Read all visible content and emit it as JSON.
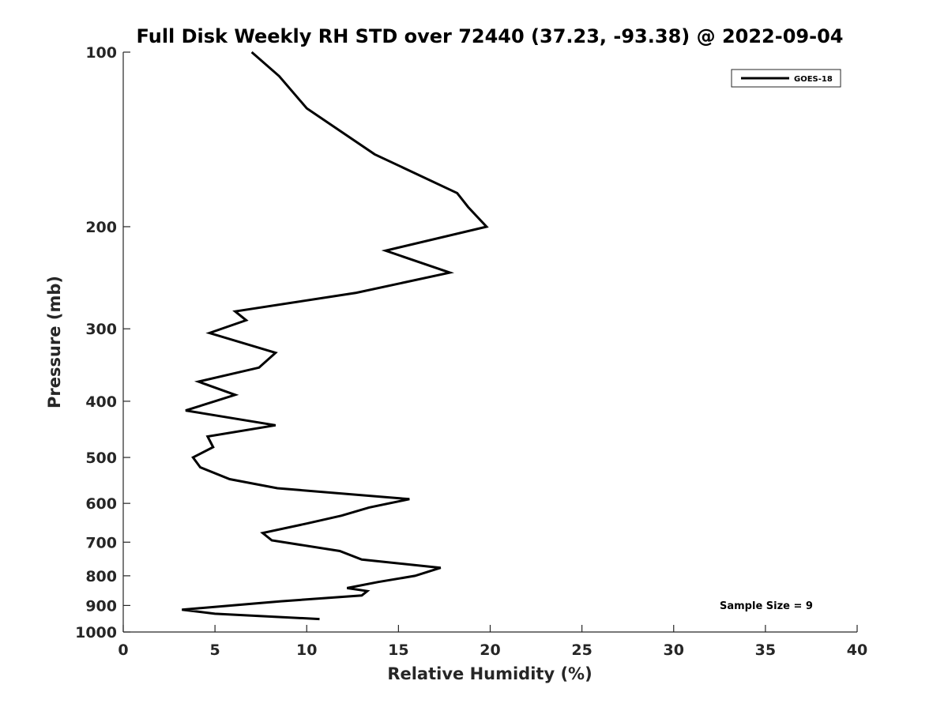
{
  "chart_data": {
    "type": "line",
    "title": "Full Disk Weekly RH STD over 72440 (37.23, -93.38) @ 2022-09-04",
    "xlabel": "Relative Humidity (%)",
    "ylabel": "Pressure (mb)",
    "xlim": [
      0,
      40
    ],
    "ylim": [
      100,
      1000
    ],
    "y_scale": "log",
    "y_reversed": true,
    "x_ticks": [
      0,
      5,
      10,
      15,
      20,
      25,
      30,
      35,
      40
    ],
    "x_tick_labels": [
      "0",
      "5",
      "10",
      "15",
      "20",
      "25",
      "30",
      "35",
      "40"
    ],
    "y_ticks": [
      100,
      200,
      300,
      400,
      500,
      600,
      700,
      800,
      900,
      1000
    ],
    "y_tick_labels": [
      "100",
      "200",
      "300",
      "400",
      "500",
      "600",
      "700",
      "800",
      "900",
      "1000"
    ],
    "grid": false,
    "legend_position": "top-right",
    "series": [
      {
        "name": "GOES-18",
        "color": "#000000",
        "x": [
          7.0,
          8.5,
          10.0,
          13.7,
          18.2,
          18.8,
          19.8,
          14.3,
          17.8,
          12.7,
          6.1,
          6.7,
          4.7,
          8.3,
          7.4,
          4.1,
          6.1,
          3.4,
          8.3,
          4.6,
          4.9,
          3.8,
          4.2,
          5.8,
          8.4,
          15.6,
          13.4,
          11.9,
          10.0,
          7.6,
          8.1,
          11.8,
          13.0,
          17.3,
          15.9,
          13.9,
          12.2,
          13.3,
          13.0,
          8.6,
          3.2,
          5.0,
          10.7
        ],
        "y": [
          100,
          110,
          125,
          150,
          175,
          185,
          200,
          220,
          240,
          260,
          280,
          290,
          305,
          330,
          350,
          370,
          390,
          415,
          440,
          460,
          480,
          500,
          520,
          545,
          565,
          590,
          610,
          630,
          650,
          675,
          695,
          725,
          750,
          775,
          800,
          820,
          840,
          850,
          865,
          885,
          915,
          930,
          950
        ]
      }
    ],
    "annotations": [
      {
        "text": "Sample Size = 9",
        "x": 32.5,
        "y": 900
      }
    ]
  }
}
